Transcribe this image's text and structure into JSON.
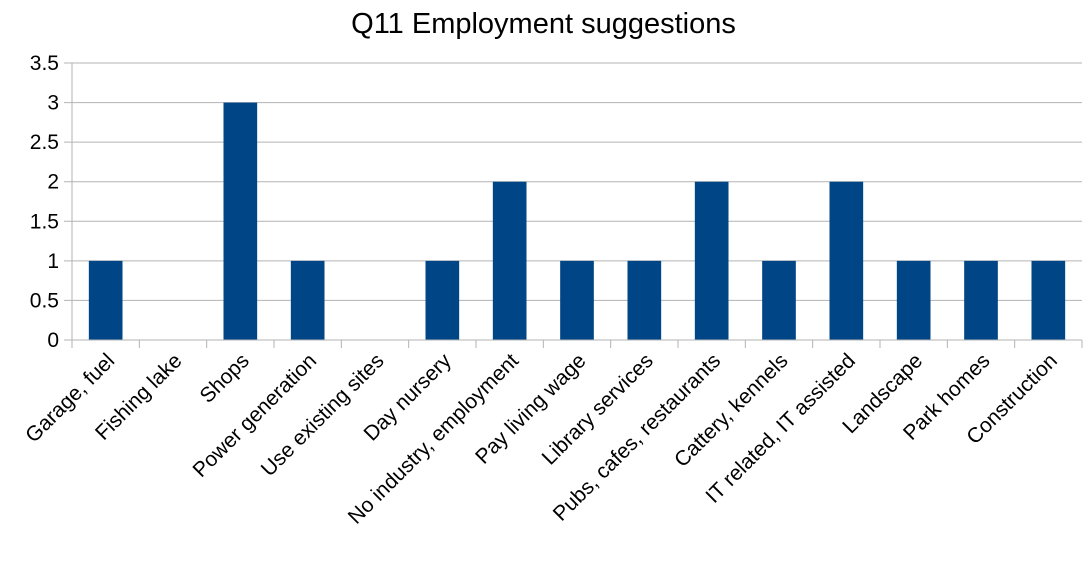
{
  "chart_data": {
    "type": "bar",
    "title": "Q11 Employment suggestions",
    "xlabel": "",
    "ylabel": "",
    "categories": [
      "Garage, fuel",
      "Fishing lake",
      "Shops",
      "Power generation",
      "Use existing sites",
      "Day nursery",
      "No industry, employment",
      "Pay living wage",
      "Library services",
      "Pubs, cafes, restaurants",
      "Cattery, kennels",
      "IT related, IT assisted",
      "Landscape",
      "Park homes",
      "Construction"
    ],
    "values": [
      1,
      0,
      3,
      1,
      0,
      1,
      2,
      1,
      1,
      2,
      1,
      2,
      1,
      1,
      1
    ],
    "ylim": [
      0,
      3.5
    ],
    "yticks": [
      "0",
      "0.5",
      "1",
      "1.5",
      "2",
      "2.5",
      "3",
      "3.5"
    ],
    "grid": true,
    "legend": "none",
    "bar_color": "#004586",
    "grid_color": "#b3b3b3"
  }
}
